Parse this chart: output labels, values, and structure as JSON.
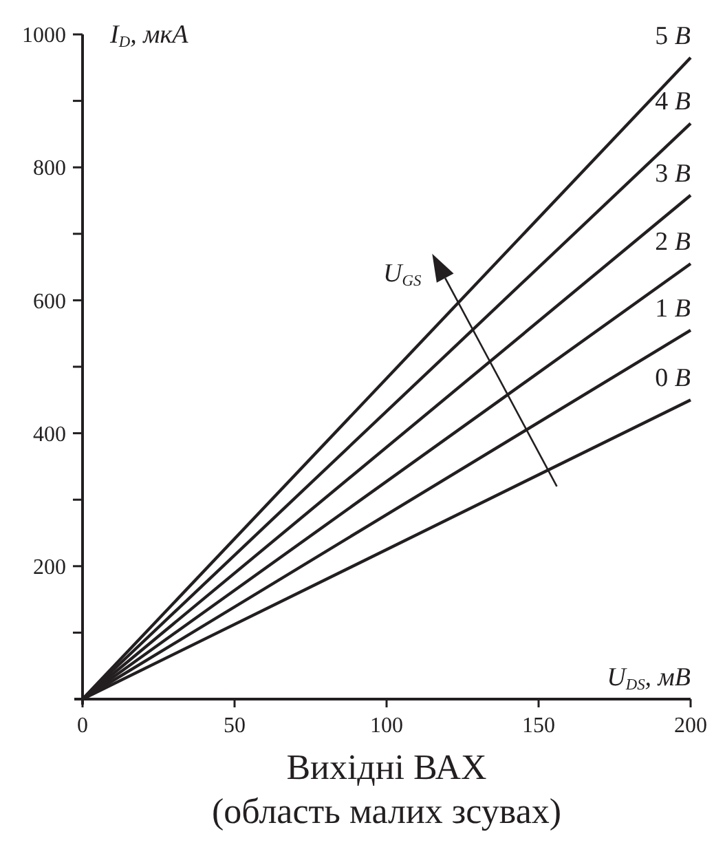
{
  "chart_data": {
    "type": "line",
    "title": "Вихідні ВАХ",
    "subtitle": "(область малих зсувах)",
    "xlabel": "U$_{DS}$, мВ",
    "ylabel": "I$_{D}$, мкА",
    "annotations": [
      "U$_{GS}$"
    ],
    "x": [
      0,
      200
    ],
    "xlim": [
      0,
      200
    ],
    "ylim": [
      0,
      1000
    ],
    "xticks": [
      0,
      50,
      100,
      150,
      200
    ],
    "yticks": [
      {
        "value": 100,
        "label": null
      },
      200,
      {
        "value": 300,
        "label": null
      },
      400,
      {
        "value": 500,
        "label": null
      },
      600,
      {
        "value": 700,
        "label": null
      },
      800,
      {
        "value": 900,
        "label": null
      },
      1000
    ],
    "grid": false,
    "legend": false,
    "marker": "none",
    "line_style": "solid",
    "series": [
      {
        "name": "0 В",
        "color": "#231f20",
        "values": [
          0,
          450
        ]
      },
      {
        "name": "1 В",
        "color": "#231f20",
        "values": [
          0,
          555
        ]
      },
      {
        "name": "2 В",
        "color": "#231f20",
        "values": [
          0,
          655
        ]
      },
      {
        "name": "3 В",
        "color": "#231f20",
        "values": [
          0,
          758
        ]
      },
      {
        "name": "4 В",
        "color": "#231f20",
        "values": [
          0,
          866
        ]
      },
      {
        "name": "5 В",
        "color": "#231f20",
        "values": [
          0,
          965
        ]
      }
    ]
  }
}
